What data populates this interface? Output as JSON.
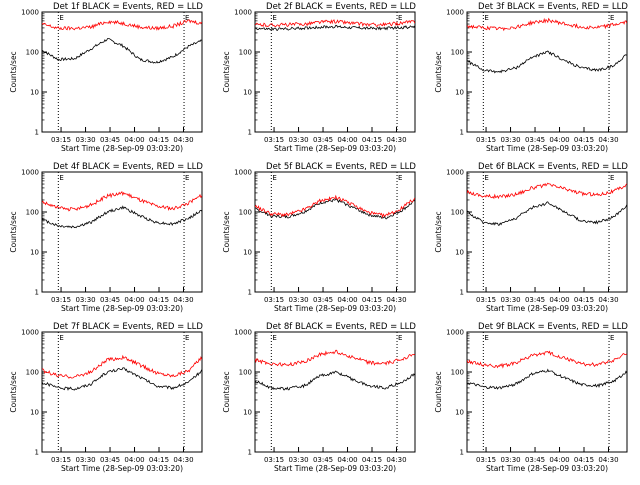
{
  "figure": {
    "x_axis_label": "Start Time (28-Sep-09 03:03:20)",
    "y_axis_label": "Counts/sec",
    "x_ticks": [
      "03:15",
      "03:30",
      "03:45",
      "04:00",
      "04:15",
      "04:30"
    ],
    "y_ticks": [
      "1",
      "10",
      "100",
      "1000"
    ],
    "marker_label": "E",
    "colors": {
      "events": "#000000",
      "lld": "#ff0000",
      "axes": "#000000",
      "background": "#ffffff"
    }
  },
  "chart_data": [
    {
      "type": "line",
      "title": "Det 1f BLACK = Events, RED = LLD",
      "xlabel": "Start Time (28-Sep-09 03:03:20)",
      "ylabel": "Counts/sec",
      "x_minutes_after_start": [
        0,
        10,
        20,
        30,
        40,
        50,
        60,
        70,
        80,
        90,
        98
      ],
      "y_scale": "log",
      "ylim": [
        1,
        1000
      ],
      "series": [
        {
          "name": "BLACK = Events",
          "color": "#000000",
          "values": [
            110,
            65,
            68,
            120,
            210,
            140,
            65,
            55,
            75,
            140,
            190
          ]
        },
        {
          "name": "RED = LLD",
          "color": "#ff0000",
          "values": [
            500,
            390,
            390,
            420,
            580,
            520,
            420,
            390,
            440,
            600,
            520
          ]
        }
      ],
      "annotations": [
        {
          "label": "E",
          "x_minutes": 10
        },
        {
          "label": "E",
          "x_minutes": 87
        }
      ]
    },
    {
      "type": "line",
      "title": "Det 2f BLACK = Events, RED = LLD",
      "xlabel": "Start Time (28-Sep-09 03:03:20)",
      "ylabel": "Counts/sec",
      "x_minutes_after_start": [
        0,
        10,
        20,
        30,
        40,
        50,
        60,
        70,
        80,
        90,
        98
      ],
      "y_scale": "log",
      "ylim": [
        1,
        1000
      ],
      "series": [
        {
          "name": "BLACK = Events",
          "color": "#000000",
          "values": [
            390,
            370,
            380,
            395,
            420,
            430,
            410,
            390,
            390,
            410,
            430
          ]
        },
        {
          "name": "RED = LLD",
          "color": "#ff0000",
          "values": [
            480,
            470,
            480,
            500,
            560,
            580,
            520,
            480,
            480,
            530,
            580
          ]
        }
      ],
      "annotations": [
        {
          "label": "E",
          "x_minutes": 10
        },
        {
          "label": "E",
          "x_minutes": 87
        }
      ]
    },
    {
      "type": "line",
      "title": "Det 3f BLACK = Events, RED = LLD",
      "xlabel": "Start Time (28-Sep-09 03:03:20)",
      "ylabel": "Counts/sec",
      "x_minutes_after_start": [
        0,
        10,
        20,
        30,
        40,
        50,
        60,
        70,
        80,
        90,
        98
      ],
      "y_scale": "log",
      "ylim": [
        1,
        1000
      ],
      "series": [
        {
          "name": "BLACK = Events",
          "color": "#000000",
          "values": [
            60,
            35,
            32,
            40,
            75,
            100,
            60,
            40,
            35,
            45,
            90
          ]
        },
        {
          "name": "RED = LLD",
          "color": "#ff0000",
          "values": [
            440,
            400,
            380,
            420,
            540,
            620,
            500,
            420,
            410,
            480,
            560
          ]
        }
      ],
      "annotations": [
        {
          "label": "E",
          "x_minutes": 10
        },
        {
          "label": "E",
          "x_minutes": 87
        }
      ]
    },
    {
      "type": "line",
      "title": "Det 4f BLACK = Events, RED = LLD",
      "xlabel": "Start Time (28-Sep-09 03:03:20)",
      "ylabel": "Counts/sec",
      "x_minutes_after_start": [
        0,
        10,
        20,
        30,
        40,
        50,
        60,
        70,
        80,
        90,
        98
      ],
      "y_scale": "log",
      "ylim": [
        1,
        1000
      ],
      "series": [
        {
          "name": "BLACK = Events",
          "color": "#000000",
          "values": [
            65,
            45,
            42,
            55,
            100,
            130,
            80,
            55,
            50,
            70,
            110
          ]
        },
        {
          "name": "RED = LLD",
          "color": "#ff0000",
          "values": [
            180,
            125,
            115,
            150,
            250,
            300,
            200,
            140,
            120,
            170,
            260
          ]
        }
      ],
      "annotations": [
        {
          "label": "E",
          "x_minutes": 10
        },
        {
          "label": "E",
          "x_minutes": 87
        }
      ]
    },
    {
      "type": "line",
      "title": "Det 5f BLACK = Events, RED = LLD",
      "xlabel": "Start Time (28-Sep-09 03:03:20)",
      "ylabel": "Counts/sec",
      "x_minutes_after_start": [
        0,
        10,
        20,
        30,
        40,
        50,
        60,
        70,
        80,
        90,
        98
      ],
      "y_scale": "log",
      "ylim": [
        1,
        1000
      ],
      "series": [
        {
          "name": "BLACK = Events",
          "color": "#000000",
          "values": [
            120,
            80,
            75,
            100,
            170,
            200,
            130,
            85,
            70,
            110,
            190
          ]
        },
        {
          "name": "RED = LLD",
          "color": "#ff0000",
          "values": [
            140,
            90,
            85,
            115,
            190,
            230,
            150,
            95,
            80,
            125,
            220
          ]
        }
      ],
      "annotations": [
        {
          "label": "E",
          "x_minutes": 10
        },
        {
          "label": "E",
          "x_minutes": 87
        }
      ]
    },
    {
      "type": "line",
      "title": "Det 6f BLACK = Events, RED = LLD",
      "xlabel": "Start Time (28-Sep-09 03:03:20)",
      "ylabel": "Counts/sec",
      "x_minutes_after_start": [
        0,
        10,
        20,
        30,
        40,
        50,
        60,
        70,
        80,
        90,
        98
      ],
      "y_scale": "log",
      "ylim": [
        1,
        1000
      ],
      "series": [
        {
          "name": "BLACK = Events",
          "color": "#000000",
          "values": [
            100,
            55,
            50,
            70,
            130,
            170,
            100,
            60,
            55,
            75,
            150
          ]
        },
        {
          "name": "RED = LLD",
          "color": "#ff0000",
          "values": [
            320,
            250,
            240,
            280,
            400,
            480,
            380,
            290,
            270,
            330,
            480
          ]
        }
      ],
      "annotations": [
        {
          "label": "E",
          "x_minutes": 10
        },
        {
          "label": "E",
          "x_minutes": 87
        }
      ]
    },
    {
      "type": "line",
      "title": "Det 7f BLACK = Events, RED = LLD",
      "xlabel": "Start Time (28-Sep-09 03:03:20)",
      "ylabel": "Counts/sec",
      "x_minutes_after_start": [
        0,
        10,
        20,
        30,
        40,
        50,
        60,
        70,
        80,
        90,
        98
      ],
      "y_scale": "log",
      "ylim": [
        1,
        1000
      ],
      "series": [
        {
          "name": "BLACK = Events",
          "color": "#000000",
          "values": [
            55,
            40,
            38,
            50,
            100,
            120,
            75,
            45,
            40,
            55,
            110
          ]
        },
        {
          "name": "RED = LLD",
          "color": "#ff0000",
          "values": [
            110,
            80,
            75,
            100,
            200,
            230,
            150,
            95,
            80,
            110,
            230
          ]
        }
      ],
      "annotations": [
        {
          "label": "E",
          "x_minutes": 10
        },
        {
          "label": "E",
          "x_minutes": 87
        }
      ]
    },
    {
      "type": "line",
      "title": "Det 8f BLACK = Events, RED = LLD",
      "xlabel": "Start Time (28-Sep-09 03:03:20)",
      "ylabel": "Counts/sec",
      "x_minutes_after_start": [
        0,
        10,
        20,
        30,
        40,
        50,
        60,
        70,
        80,
        90,
        98
      ],
      "y_scale": "log",
      "ylim": [
        1,
        1000
      ],
      "series": [
        {
          "name": "BLACK = Events",
          "color": "#000000",
          "values": [
            60,
            40,
            38,
            45,
            80,
            100,
            65,
            45,
            40,
            55,
            90
          ]
        },
        {
          "name": "RED = LLD",
          "color": "#ff0000",
          "values": [
            200,
            160,
            150,
            180,
            280,
            320,
            230,
            170,
            160,
            210,
            300
          ]
        }
      ],
      "annotations": [
        {
          "label": "E",
          "x_minutes": 10
        },
        {
          "label": "E",
          "x_minutes": 87
        }
      ]
    },
    {
      "type": "line",
      "title": "Det 9f BLACK = Events, RED = LLD",
      "xlabel": "Start Time (28-Sep-09 03:03:20)",
      "ylabel": "Counts/sec",
      "x_minutes_after_start": [
        0,
        10,
        20,
        30,
        40,
        50,
        60,
        70,
        80,
        90,
        98
      ],
      "y_scale": "log",
      "ylim": [
        1,
        1000
      ],
      "series": [
        {
          "name": "BLACK = Events",
          "color": "#000000",
          "values": [
            55,
            42,
            40,
            50,
            90,
            110,
            70,
            48,
            45,
            60,
            100
          ]
        },
        {
          "name": "RED = LLD",
          "color": "#ff0000",
          "values": [
            190,
            150,
            140,
            170,
            260,
            300,
            220,
            160,
            150,
            200,
            290
          ]
        }
      ],
      "annotations": [
        {
          "label": "E",
          "x_minutes": 10
        },
        {
          "label": "E",
          "x_minutes": 87
        }
      ]
    }
  ]
}
